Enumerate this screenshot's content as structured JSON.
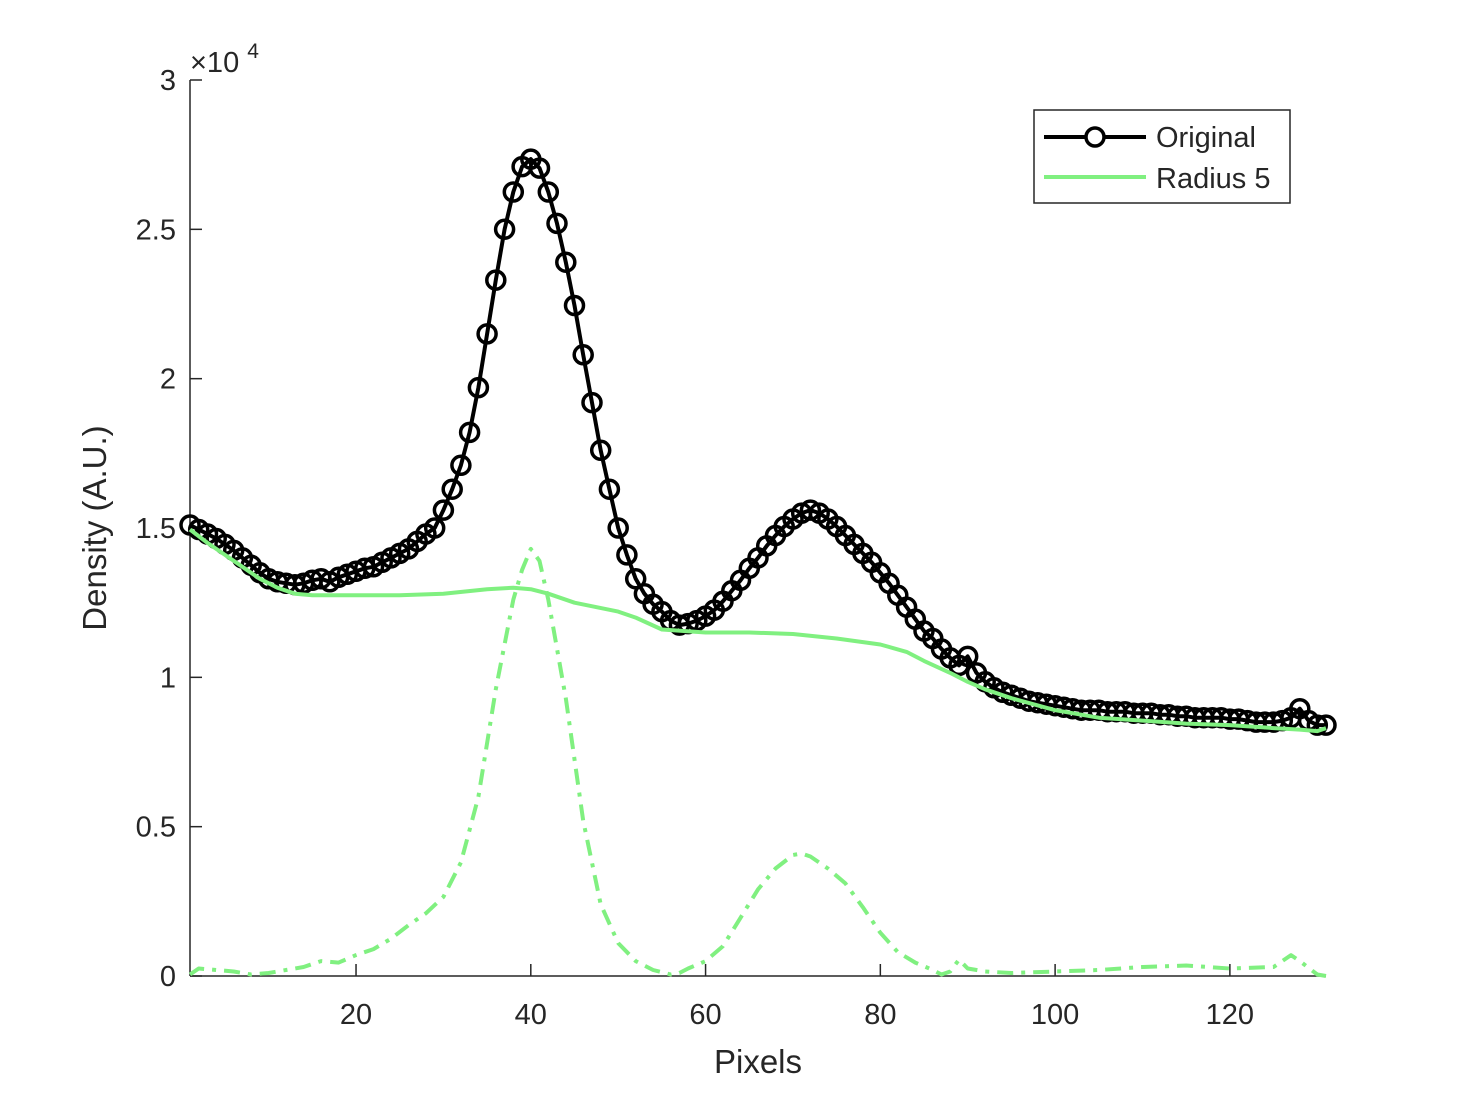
{
  "chart_data": {
    "type": "line",
    "xlabel": "Pixels",
    "ylabel": "Density (A.U.)",
    "y_exponent_label": "×10",
    "y_exponent_power": "4",
    "xlim": [
      1,
      131
    ],
    "ylim": [
      0,
      30000
    ],
    "xticks": [
      20,
      40,
      60,
      80,
      100,
      120
    ],
    "xtick_labels": [
      "20",
      "40",
      "60",
      "80",
      "100",
      "120"
    ],
    "yticks": [
      0,
      5000,
      10000,
      15000,
      20000,
      25000,
      30000
    ],
    "ytick_labels": [
      "0",
      "0.5",
      "1",
      "1.5",
      "2",
      "2.5",
      "3"
    ],
    "legend_position": "top-right",
    "colors": {
      "original": "#000000",
      "radius5": "#80f080",
      "axis": "#262626"
    },
    "series": [
      {
        "name": "Original",
        "style": "solid-with-circle-markers",
        "x": [
          1,
          2,
          3,
          4,
          5,
          6,
          7,
          8,
          9,
          10,
          11,
          12,
          13,
          14,
          15,
          16,
          17,
          18,
          19,
          20,
          21,
          22,
          23,
          24,
          25,
          26,
          27,
          28,
          29,
          30,
          31,
          32,
          33,
          34,
          35,
          36,
          37,
          38,
          39,
          40,
          41,
          42,
          43,
          44,
          45,
          46,
          47,
          48,
          49,
          50,
          51,
          52,
          53,
          54,
          55,
          56,
          57,
          58,
          59,
          60,
          61,
          62,
          63,
          64,
          65,
          66,
          67,
          68,
          69,
          70,
          71,
          72,
          73,
          74,
          75,
          76,
          77,
          78,
          79,
          80,
          81,
          82,
          83,
          84,
          85,
          86,
          87,
          88,
          89,
          90,
          91,
          92,
          93,
          94,
          95,
          96,
          97,
          98,
          99,
          100,
          101,
          102,
          103,
          104,
          105,
          106,
          107,
          108,
          109,
          110,
          111,
          112,
          113,
          114,
          115,
          116,
          117,
          118,
          119,
          120,
          121,
          122,
          123,
          124,
          125,
          126,
          127,
          128,
          129,
          130,
          131
        ],
        "y": [
          15100,
          14950,
          14800,
          14650,
          14450,
          14250,
          14000,
          13750,
          13500,
          13300,
          13200,
          13150,
          13100,
          13150,
          13250,
          13300,
          13200,
          13350,
          13450,
          13550,
          13650,
          13700,
          13850,
          14000,
          14150,
          14300,
          14550,
          14800,
          15000,
          15600,
          16300,
          17100,
          18200,
          19700,
          21500,
          23300,
          25000,
          26250,
          27100,
          27350,
          27050,
          26250,
          25200,
          23900,
          22450,
          20800,
          19200,
          17600,
          16300,
          15000,
          14100,
          13300,
          12800,
          12450,
          12200,
          11900,
          11750,
          11800,
          11900,
          12050,
          12250,
          12550,
          12900,
          13250,
          13650,
          14000,
          14400,
          14750,
          15050,
          15300,
          15500,
          15600,
          15500,
          15300,
          15050,
          14750,
          14450,
          14150,
          13850,
          13500,
          13150,
          12750,
          12350,
          11950,
          11550,
          11300,
          10950,
          10650,
          10400,
          10700,
          10150,
          9850,
          9650,
          9500,
          9400,
          9300,
          9200,
          9150,
          9100,
          9050,
          9000,
          8950,
          8900,
          8900,
          8900,
          8850,
          8850,
          8850,
          8800,
          8800,
          8800,
          8750,
          8750,
          8700,
          8700,
          8650,
          8650,
          8650,
          8650,
          8600,
          8600,
          8550,
          8500,
          8500,
          8500,
          8550,
          8650,
          8950,
          8550,
          8400,
          8400
        ]
      },
      {
        "name": "Radius 5",
        "style": "solid",
        "x": [
          1,
          3,
          5,
          7,
          9,
          11,
          13,
          15,
          20,
          25,
          30,
          35,
          38,
          40,
          42,
          45,
          50,
          52,
          55,
          60,
          65,
          70,
          75,
          80,
          83,
          85,
          88,
          90,
          92,
          95,
          100,
          105,
          110,
          115,
          120,
          125,
          128,
          130,
          131
        ],
        "y": [
          14950,
          14500,
          14100,
          13700,
          13300,
          13000,
          12800,
          12750,
          12750,
          12750,
          12800,
          12950,
          13000,
          12950,
          12800,
          12500,
          12200,
          12000,
          11600,
          11500,
          11500,
          11450,
          11300,
          11100,
          10850,
          10550,
          10150,
          9850,
          9600,
          9300,
          8900,
          8650,
          8550,
          8450,
          8400,
          8300,
          8250,
          8200,
          8300
        ]
      },
      {
        "name": "",
        "style": "dash-dot",
        "x": [
          1,
          2,
          4,
          6,
          8,
          10,
          12,
          14,
          16,
          18,
          20,
          22,
          24,
          26,
          28,
          30,
          32,
          34,
          36,
          38,
          39,
          40,
          41,
          42,
          44,
          46,
          48,
          50,
          52,
          54,
          56,
          57,
          58,
          60,
          62,
          64,
          66,
          68,
          70,
          71,
          72,
          74,
          76,
          78,
          80,
          82,
          84,
          86,
          87,
          88,
          89,
          90,
          92,
          95,
          100,
          105,
          110,
          115,
          120,
          125,
          127,
          128,
          130,
          131
        ],
        "y": [
          50,
          250,
          200,
          150,
          50,
          100,
          200,
          300,
          500,
          450,
          700,
          900,
          1250,
          1700,
          2100,
          2650,
          3800,
          6000,
          9600,
          12600,
          13600,
          14300,
          13900,
          12600,
          9300,
          5200,
          2400,
          1100,
          500,
          200,
          50,
          100,
          250,
          500,
          1000,
          1950,
          2900,
          3600,
          4050,
          4100,
          4000,
          3600,
          3100,
          2300,
          1450,
          800,
          450,
          200,
          50,
          150,
          550,
          250,
          150,
          100,
          150,
          200,
          300,
          350,
          250,
          300,
          700,
          500,
          50,
          0
        ]
      }
    ]
  }
}
